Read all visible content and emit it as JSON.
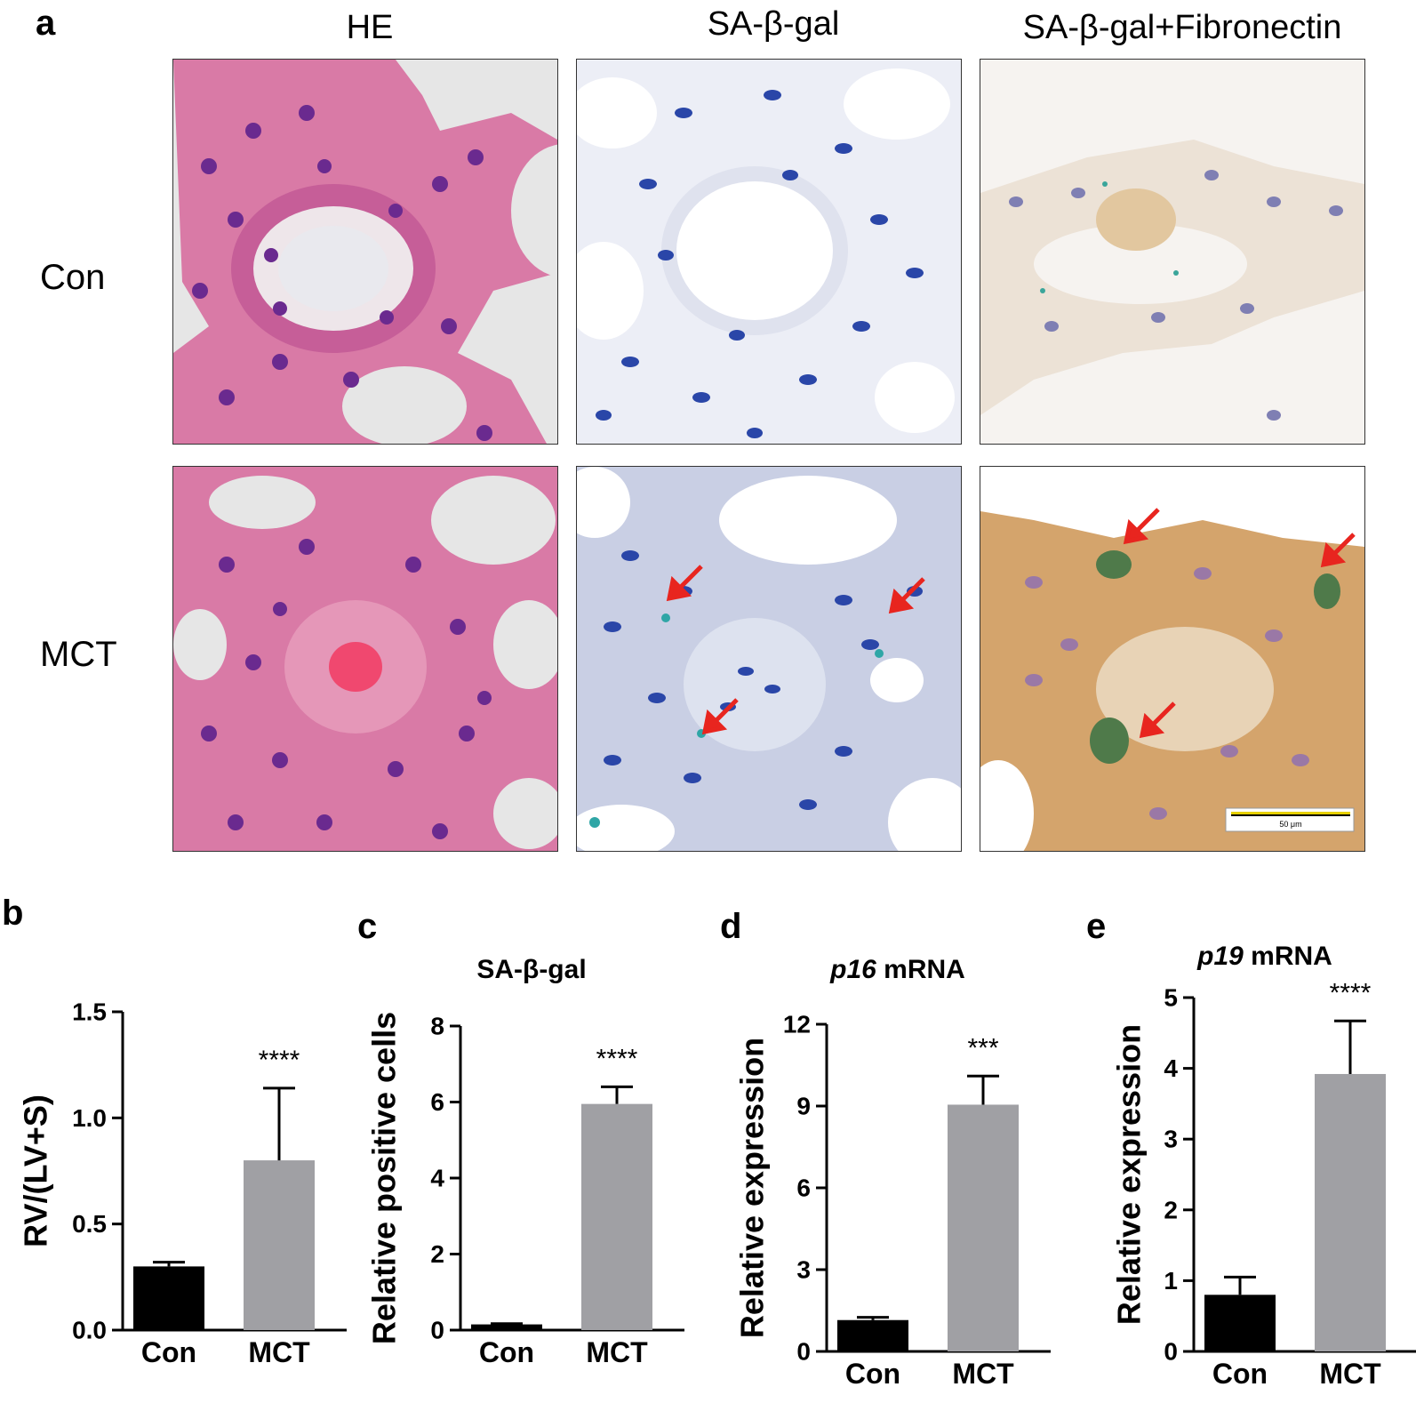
{
  "panel_a": {
    "letter": "a",
    "columns": [
      "HE",
      "SA-β-gal",
      "SA-β-gal+Fibronectin"
    ],
    "rows": [
      "Con",
      "MCT"
    ],
    "scale_bar_label": "50 μm",
    "colors": {
      "he_tissue": "#d9779f",
      "he_bg": "#e6e6e6",
      "sa_bg": "#f7f7fb",
      "nuclei_blue": "#2a46a8",
      "fibronectin": "#caa06a",
      "arrow": "#e8251f"
    }
  },
  "chart_data": [
    {
      "letter": "b",
      "type": "bar",
      "title": "",
      "xlabel": "",
      "ylabel": "RV/(LV+S)",
      "categories": [
        "Con",
        "MCT"
      ],
      "values": [
        0.3,
        0.8
      ],
      "errors": [
        0.02,
        0.34
      ],
      "ylim": [
        0,
        1.5
      ],
      "yticks": [
        0.0,
        0.5,
        1.0,
        1.5
      ],
      "ytick_labels": [
        "0.0",
        "0.5",
        "1.0",
        "1.5"
      ],
      "significance": "****",
      "bar_colors": [
        "#000000",
        "#a0a0a4"
      ]
    },
    {
      "letter": "c",
      "type": "bar",
      "title": "SA-β-gal",
      "xlabel": "",
      "ylabel": "Relative positive cells",
      "categories": [
        "Con",
        "MCT"
      ],
      "values": [
        0.15,
        5.95
      ],
      "errors": [
        0.02,
        0.45
      ],
      "ylim": [
        0,
        8
      ],
      "yticks": [
        0,
        2,
        4,
        6,
        8
      ],
      "ytick_labels": [
        "0",
        "2",
        "4",
        "6",
        "8"
      ],
      "significance": "****",
      "bar_colors": [
        "#000000",
        "#a0a0a4"
      ]
    },
    {
      "letter": "d",
      "type": "bar",
      "title": "p16 mRNA",
      "title_italic": "p16",
      "title_rest": " mRNA",
      "xlabel": "",
      "ylabel": "Relative expression",
      "categories": [
        "Con",
        "MCT"
      ],
      "values": [
        1.15,
        9.05
      ],
      "errors": [
        0.1,
        1.05
      ],
      "ylim": [
        0,
        12
      ],
      "yticks": [
        0,
        3,
        6,
        9,
        12
      ],
      "ytick_labels": [
        "0",
        "3",
        "6",
        "9",
        "12"
      ],
      "significance": "***",
      "bar_colors": [
        "#000000",
        "#a0a0a4"
      ]
    },
    {
      "letter": "e",
      "type": "bar",
      "title": "p19 mRNA",
      "title_italic": "p19",
      "title_rest": " mRNA",
      "xlabel": "",
      "ylabel": "Relative expression",
      "categories": [
        "Con",
        "MCT"
      ],
      "values": [
        0.8,
        3.92
      ],
      "errors": [
        0.25,
        0.75
      ],
      "ylim": [
        0,
        5
      ],
      "yticks": [
        0,
        1,
        2,
        3,
        4,
        5
      ],
      "ytick_labels": [
        "0",
        "1",
        "2",
        "3",
        "4",
        "5"
      ],
      "significance": "****",
      "bar_colors": [
        "#000000",
        "#a0a0a4"
      ]
    }
  ]
}
